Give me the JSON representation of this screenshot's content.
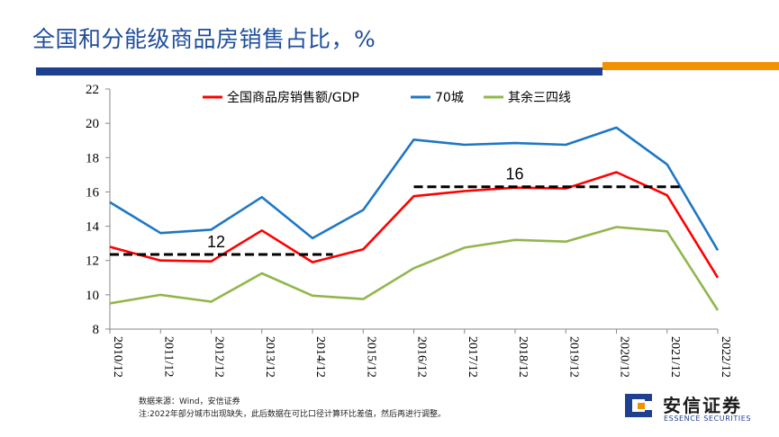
{
  "slide": {
    "title": "全国和分能级商品房销售占比，%"
  },
  "footnotes": {
    "source": "数据来源：Wind，安信证券",
    "note": "注:2022年部分城市出现缺失，此后数据在可比口径计算环比差值，然后再进行调整。"
  },
  "logo": {
    "cn": "安信证券",
    "en": "ESSENCE SECURITIES"
  },
  "chart_data": {
    "type": "line",
    "title": "全国和分能级商品房销售占比，%",
    "xlabel": "",
    "ylabel": "",
    "ylim": [
      8,
      22
    ],
    "yticks": [
      8,
      10,
      12,
      14,
      16,
      18,
      20,
      22
    ],
    "grid": false,
    "legend_position": "top",
    "x": [
      "2010/12",
      "2011/12",
      "2012/12",
      "2013/12",
      "2014/12",
      "2015/12",
      "2016/12",
      "2017/12",
      "2018/12",
      "2019/12",
      "2020/12",
      "2021/12",
      "2022/12"
    ],
    "series": [
      {
        "name": "全国商品房销售额/GDP",
        "color": "#ff0000",
        "values": [
          12.8,
          12.0,
          11.95,
          13.75,
          11.9,
          12.65,
          15.75,
          16.05,
          16.25,
          16.2,
          17.15,
          15.8,
          11.0
        ]
      },
      {
        "name": "70城",
        "color": "#1f77c4",
        "values": [
          15.4,
          13.6,
          13.8,
          15.7,
          13.3,
          14.95,
          19.05,
          18.75,
          18.85,
          18.75,
          19.75,
          17.6,
          12.6
        ]
      },
      {
        "name": "其余三四线",
        "color": "#92b64c",
        "values": [
          9.5,
          10.0,
          9.6,
          11.25,
          9.95,
          9.75,
          11.55,
          12.75,
          13.2,
          13.1,
          13.95,
          13.7,
          9.1
        ]
      }
    ],
    "annotations": [
      {
        "label": "12",
        "value": 12.35,
        "from_index": 0,
        "to_index": 4.4
      },
      {
        "label": "16",
        "value": 16.3,
        "from_index": 6,
        "to_index": 11.3
      }
    ]
  }
}
